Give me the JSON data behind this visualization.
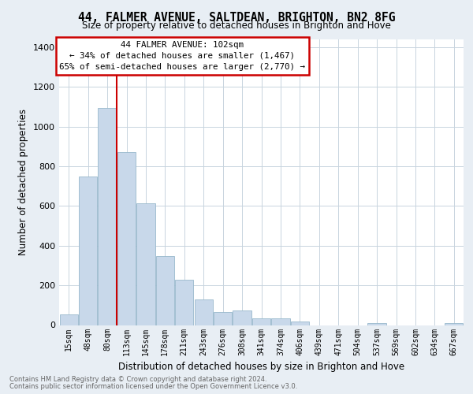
{
  "title_line1": "44, FALMER AVENUE, SALTDEAN, BRIGHTON, BN2 8FG",
  "title_line2": "Size of property relative to detached houses in Brighton and Hove",
  "xlabel": "Distribution of detached houses by size in Brighton and Hove",
  "ylabel": "Number of detached properties",
  "bar_labels": [
    "15sqm",
    "48sqm",
    "80sqm",
    "113sqm",
    "145sqm",
    "178sqm",
    "211sqm",
    "243sqm",
    "276sqm",
    "308sqm",
    "341sqm",
    "374sqm",
    "406sqm",
    "439sqm",
    "471sqm",
    "504sqm",
    "537sqm",
    "569sqm",
    "602sqm",
    "634sqm",
    "667sqm"
  ],
  "bar_values": [
    52,
    750,
    1095,
    870,
    615,
    348,
    228,
    130,
    65,
    72,
    32,
    32,
    18,
    0,
    0,
    0,
    10,
    0,
    0,
    0,
    10
  ],
  "bar_color": "#c8d8ea",
  "bar_edge_color": "#98b8cc",
  "red_line_after_bar": 2,
  "annotation_title": "44 FALMER AVENUE: 102sqm",
  "annotation_line1": "← 34% of detached houses are smaller (1,467)",
  "annotation_line2": "65% of semi-detached houses are larger (2,770) →",
  "annotation_box_color": "#ffffff",
  "annotation_box_edge": "#cc0000",
  "footer_line1": "Contains HM Land Registry data © Crown copyright and database right 2024.",
  "footer_line2": "Contains public sector information licensed under the Open Government Licence v3.0.",
  "ylim": [
    0,
    1440
  ],
  "yticks": [
    0,
    200,
    400,
    600,
    800,
    1000,
    1200,
    1400
  ],
  "background_color": "#e8eef4",
  "plot_bg_color": "#ffffff",
  "grid_color": "#c8d4de"
}
